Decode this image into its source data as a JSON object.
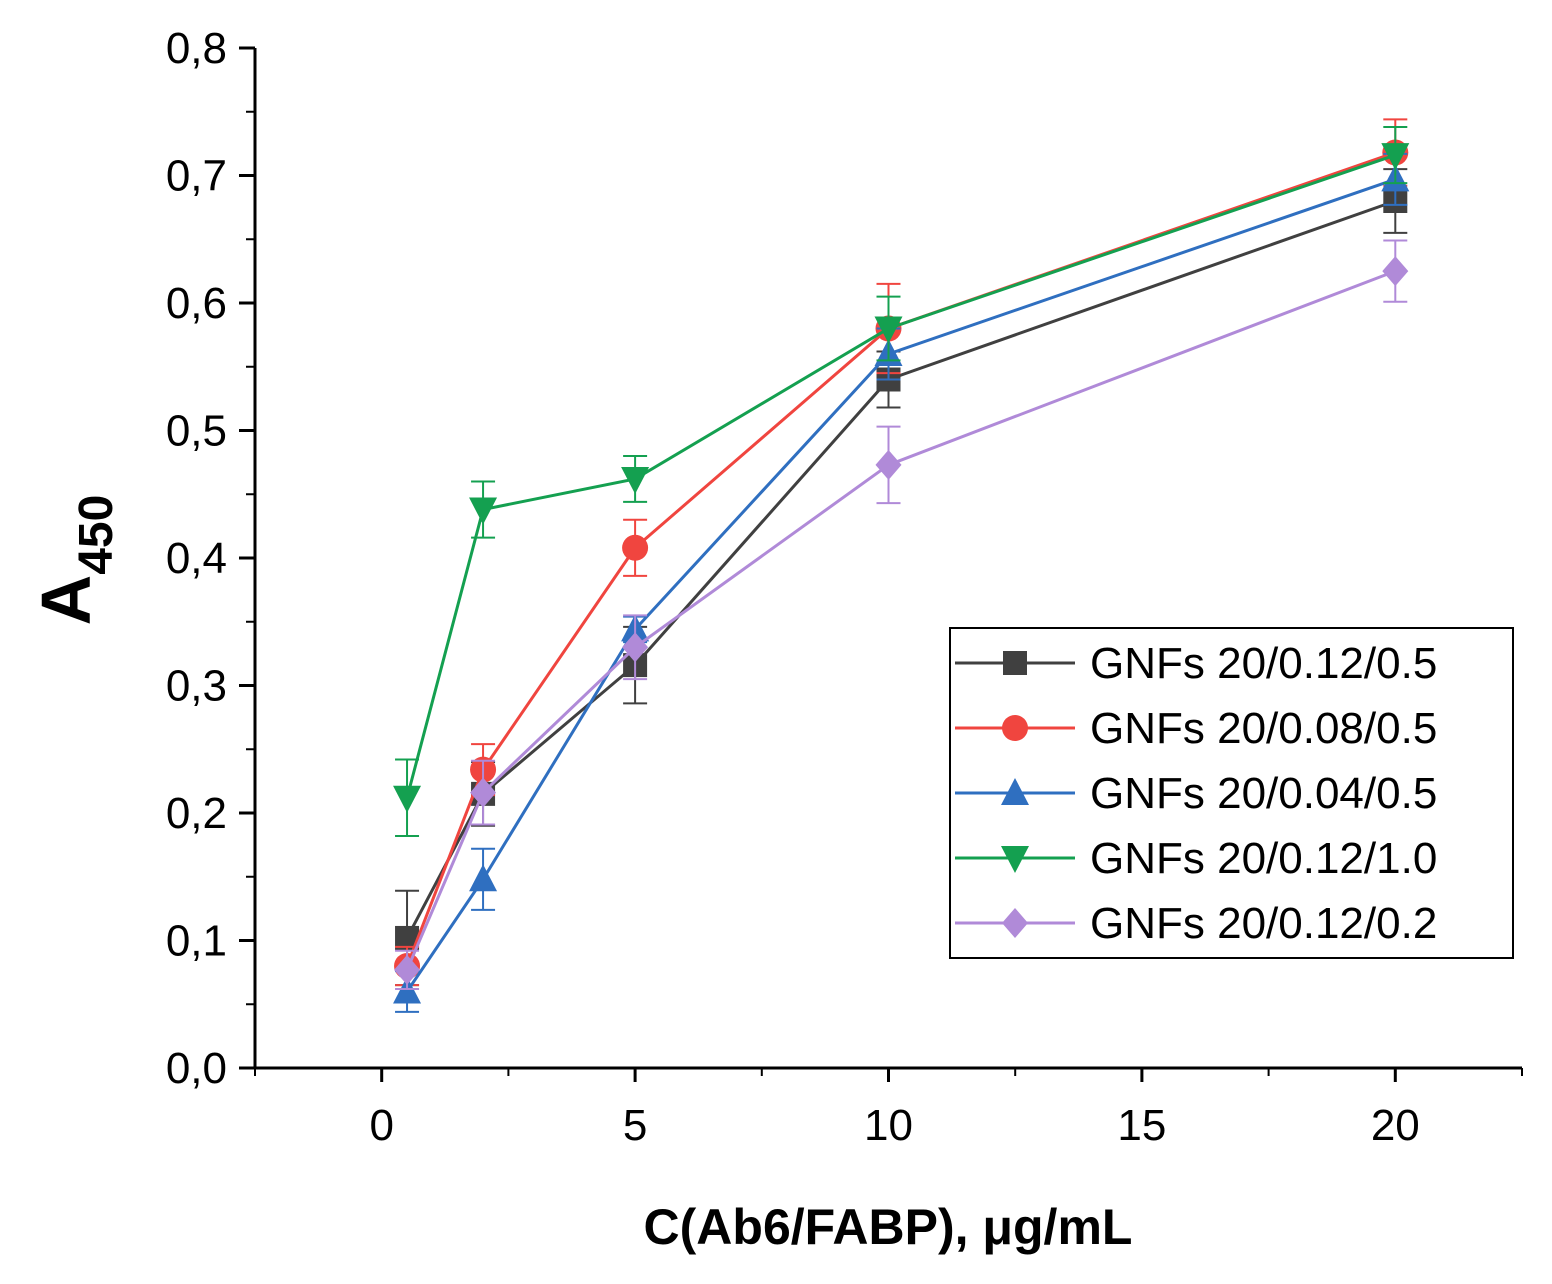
{
  "chart_data": {
    "type": "line",
    "title": "",
    "xlabel": "C(Ab6/FABP), μg/mL",
    "ylabel_main": "A",
    "ylabel_sub": "450",
    "xlim": [
      -2.5,
      22.5
    ],
    "ylim": [
      0.0,
      0.8
    ],
    "x_ticks": [
      0,
      5,
      10,
      15,
      20
    ],
    "x_tick_labels": [
      "0",
      "5",
      "10",
      "15",
      "20"
    ],
    "y_ticks": [
      0.0,
      0.1,
      0.2,
      0.3,
      0.4,
      0.5,
      0.6,
      0.7,
      0.8
    ],
    "y_tick_labels": [
      "0,0",
      "0,1",
      "0,2",
      "0,3",
      "0,4",
      "0,5",
      "0,6",
      "0,7",
      "0,8"
    ],
    "x": [
      0.5,
      2,
      5,
      10,
      20
    ],
    "legend_position": "right",
    "series": [
      {
        "name": "GNFs 20/0.12/0.5",
        "color": "#404040",
        "marker": "square",
        "values": [
          0.102,
          0.215,
          0.316,
          0.54,
          0.68
        ],
        "errors": [
          0.037,
          0.025,
          0.03,
          0.022,
          0.025
        ]
      },
      {
        "name": "GNFs 20/0.08/0.5",
        "color": "#f0453f",
        "marker": "circle",
        "values": [
          0.08,
          0.234,
          0.408,
          0.58,
          0.718
        ],
        "errors": [
          0.015,
          0.02,
          0.022,
          0.035,
          0.026
        ]
      },
      {
        "name": "GNFs 20/0.04/0.5",
        "color": "#2f6fc0",
        "marker": "triangle-up",
        "values": [
          0.06,
          0.148,
          0.344,
          0.56,
          0.697
        ],
        "errors": [
          0.016,
          0.024,
          0.01,
          0.02,
          0.02
        ]
      },
      {
        "name": "GNFs 20/0.12/1.0",
        "color": "#14a050",
        "marker": "triangle-down",
        "values": [
          0.212,
          0.438,
          0.462,
          0.58,
          0.716
        ],
        "errors": [
          0.03,
          0.022,
          0.018,
          0.025,
          0.022
        ]
      },
      {
        "name": "GNFs 20/0.12/0.2",
        "color": "#b08ad8",
        "marker": "diamond",
        "values": [
          0.077,
          0.216,
          0.33,
          0.473,
          0.625
        ],
        "errors": [
          0.015,
          0.025,
          0.025,
          0.03,
          0.024
        ]
      }
    ]
  }
}
